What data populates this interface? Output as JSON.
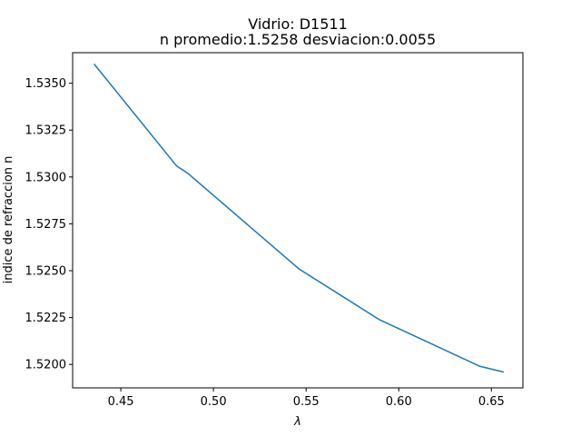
{
  "chart_data": {
    "type": "line",
    "title": "Vidrio: D1511",
    "subtitle": "n promedio:1.5258 desviacion:0.0055",
    "xlabel": "λ",
    "ylabel": "indice de refraccion n",
    "xlim": [
      0.424,
      0.667
    ],
    "ylim": [
      1.51875,
      1.53663
    ],
    "x_ticks": [
      0.45,
      0.5,
      0.55,
      0.6,
      0.65
    ],
    "x_tick_labels": [
      "0.45",
      "0.50",
      "0.55",
      "0.60",
      "0.65"
    ],
    "y_ticks": [
      1.52,
      1.5225,
      1.525,
      1.5275,
      1.53,
      1.5325,
      1.535
    ],
    "y_tick_labels": [
      "1.5200",
      "1.5225",
      "1.5250",
      "1.5275",
      "1.5300",
      "1.5325",
      "1.5350"
    ],
    "grid": false,
    "series": [
      {
        "color": "#1f77b4",
        "x": [
          0.4358,
          0.48,
          0.4861,
          0.5461,
          0.5893,
          0.6438,
          0.6563
        ],
        "y": [
          1.536,
          1.5306,
          1.5302,
          1.5251,
          1.5224,
          1.5199,
          1.5196
        ]
      }
    ]
  }
}
